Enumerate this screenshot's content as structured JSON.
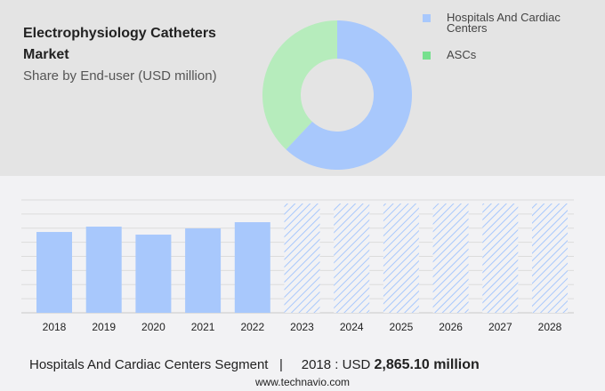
{
  "title": "Electrophysiology Catheters Market",
  "subtitle": "Share by End-user (USD million)",
  "colors": {
    "hospitals": "#a8c8fc",
    "ascs": "#b6ecbc",
    "ascs_legend": "#77e08e",
    "forecast_hatch": "#a8c8fc"
  },
  "chart_data": [
    {
      "type": "pie",
      "donut": true,
      "legend_placement": "right",
      "labels": [
        "Hospitals And Cardiac Centers",
        "ASCs"
      ],
      "values": [
        62,
        38
      ]
    },
    {
      "type": "bar",
      "categories": [
        "2018",
        "2019",
        "2020",
        "2021",
        "2022",
        "2023",
        "2024",
        "2025",
        "2026",
        "2027",
        "2028"
      ],
      "values": [
        2865.1,
        3054,
        2771,
        2991,
        3212,
        null,
        null,
        null,
        null,
        null,
        null
      ],
      "forecast_categories": [
        "2023",
        "2024",
        "2025",
        "2026",
        "2027",
        "2028"
      ],
      "grid": true,
      "ylim": [
        0,
        4000
      ]
    }
  ],
  "footer": {
    "segment": "Hospitals And Cardiac Centers Segment",
    "separator": "|",
    "year_label": "2018 : USD",
    "value": "2,865.10 million"
  },
  "site": "www.technavio.com"
}
